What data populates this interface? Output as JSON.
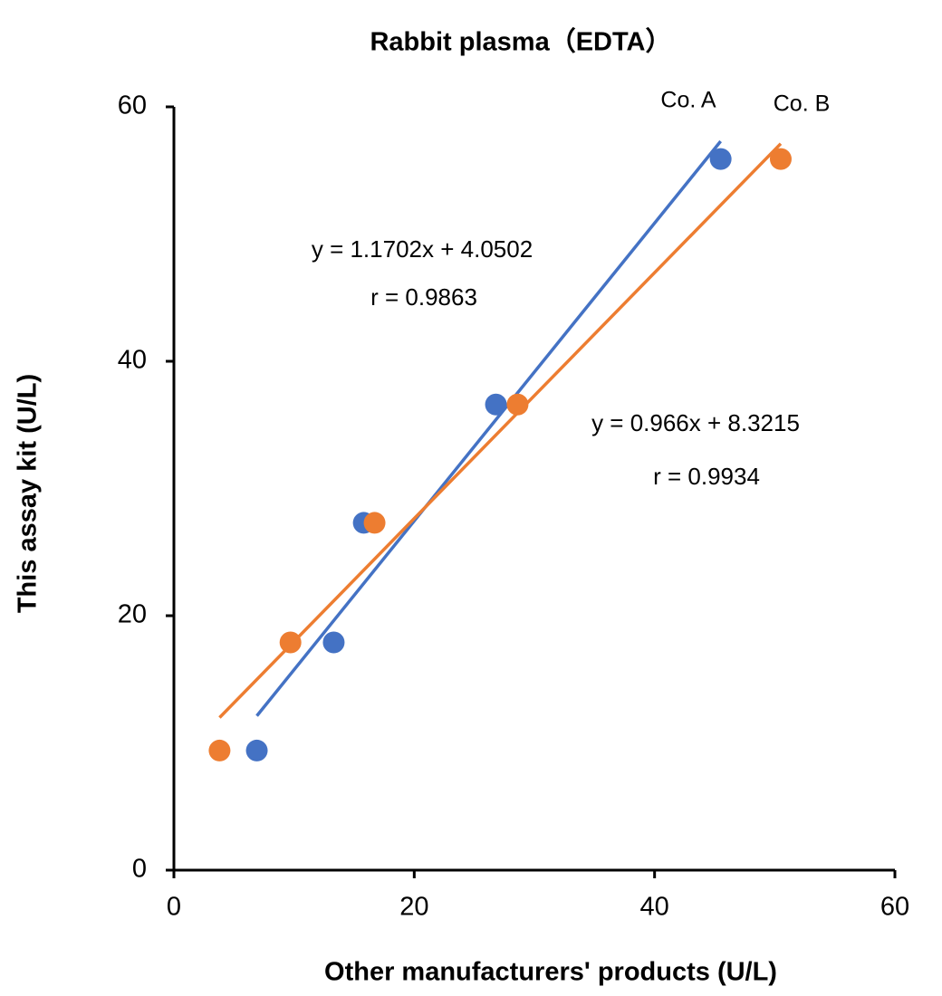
{
  "chart_data": {
    "type": "scatter",
    "title": "Rabbit plasma（EDTA）",
    "x_label": "Other manufacturers' products (U/L)",
    "y_label": "This assay kit (U/L)",
    "xlim": [
      0,
      60
    ],
    "xticks": [
      0,
      20,
      40,
      60
    ],
    "ylim": [
      0,
      60
    ],
    "yticks": [
      0,
      20,
      40,
      60
    ],
    "grid": false,
    "series": [
      {
        "name": "Co. A",
        "color": "#4472c4",
        "x": [
          6.9,
          13.3,
          15.8,
          26.8,
          45.5
        ],
        "values": [
          9.4,
          17.9,
          27.3,
          36.6,
          55.9
        ],
        "trendline": {
          "slope": 1.1702,
          "intercept": 4.0502,
          "equation": "y = 1.1702x + 4.0502",
          "r": "r = 0.9863"
        }
      },
      {
        "name": "Co. B",
        "color": "#ed7d31",
        "x": [
          3.8,
          9.7,
          16.7,
          28.6,
          50.5
        ],
        "values": [
          9.4,
          17.9,
          27.3,
          36.6,
          55.9
        ],
        "trendline": {
          "slope": 0.966,
          "intercept": 8.3215,
          "equation": "y = 0.966x + 8.3215",
          "r": "r = 0.9934"
        }
      }
    ]
  }
}
